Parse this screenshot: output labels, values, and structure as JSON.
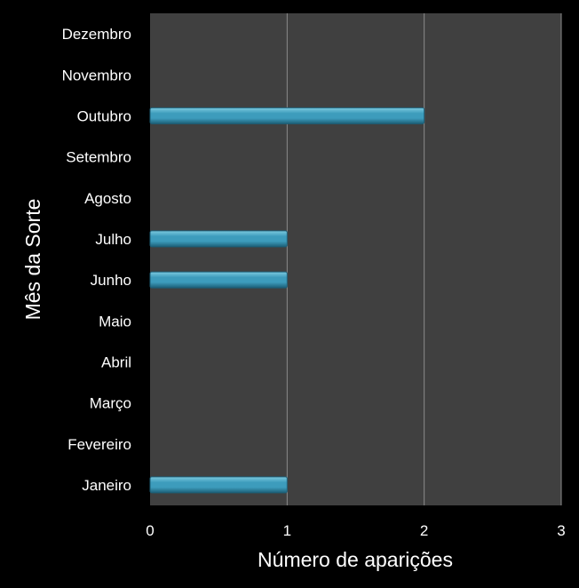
{
  "chart_data": {
    "type": "bar",
    "orientation": "horizontal",
    "categories": [
      "Janeiro",
      "Fevereiro",
      "Março",
      "Abril",
      "Maio",
      "Junho",
      "Julho",
      "Agosto",
      "Setembro",
      "Outubro",
      "Novembro",
      "Dezembro"
    ],
    "values": [
      1,
      0,
      0,
      0,
      0,
      1,
      1,
      0,
      0,
      2,
      0,
      0
    ],
    "xlabel": "Número de aparições",
    "ylabel": "Mês da Sorte",
    "xlim": [
      0,
      3
    ],
    "xticks": [
      "0",
      "1",
      "2",
      "3"
    ],
    "grid": "vertical",
    "legend": "none",
    "colors": {
      "background": "#000000",
      "plot_area": "#404040",
      "gridline": "#8c8c8c",
      "bar_light": "#7cc9df",
      "bar_main": "#3d9cbc",
      "bar_dark": "#1c5e76",
      "text": "#ffffff"
    }
  }
}
